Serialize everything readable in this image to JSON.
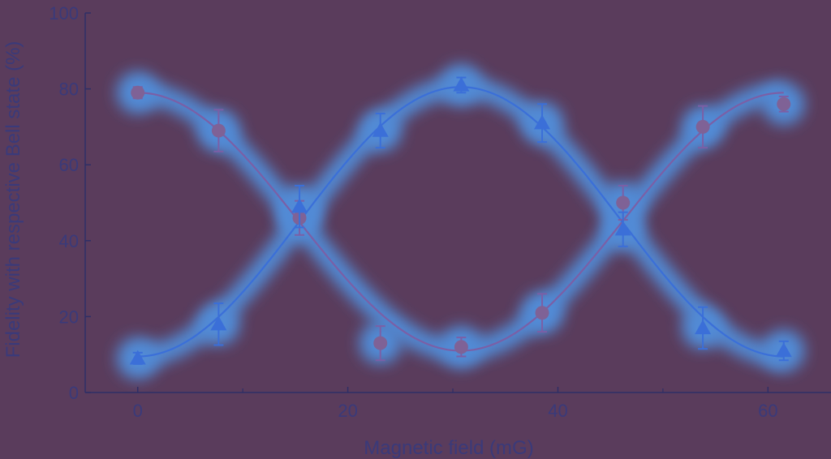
{
  "chart_data": {
    "type": "scatter",
    "title": "",
    "xlabel": "Magnetic field (mG)",
    "ylabel": "Fidelity with respective Bell state (%)",
    "xlim": [
      -5,
      66
    ],
    "ylim": [
      0,
      100
    ],
    "xticks": [
      0,
      20,
      40,
      60
    ],
    "xticks_minor": [
      10,
      30,
      50
    ],
    "yticks": [
      0,
      20,
      40,
      60,
      80,
      100
    ],
    "grid": false,
    "legend": "none",
    "series": [
      {
        "marker": "circle",
        "color": "#7b5fa6",
        "x": [
          0,
          7.7,
          15.4,
          23.1,
          30.8,
          38.5,
          46.2,
          53.8,
          61.5
        ],
        "y": [
          79,
          69,
          46,
          13,
          12,
          21,
          50,
          70,
          76
        ],
        "err": [
          1.5,
          5.5,
          4.5,
          4.5,
          2.5,
          5,
          4.5,
          5.5,
          2
        ],
        "fit": {
          "offset": 45,
          "amplitude": 34,
          "period": 61.5,
          "phase_x": 0
        }
      },
      {
        "marker": "triangle",
        "color": "#3b6fd8",
        "x": [
          0,
          7.7,
          15.4,
          23.1,
          30.8,
          38.5,
          46.2,
          53.8,
          61.5
        ],
        "y": [
          9,
          18,
          49,
          69,
          81,
          71,
          43,
          17,
          11
        ],
        "err": [
          1.5,
          5.5,
          5.5,
          4.5,
          2,
          5,
          4.5,
          5.5,
          2.5
        ],
        "fit": {
          "offset": 45,
          "amplitude": 35.5,
          "period": 61.5,
          "phase_x": 30.75
        }
      }
    ]
  }
}
